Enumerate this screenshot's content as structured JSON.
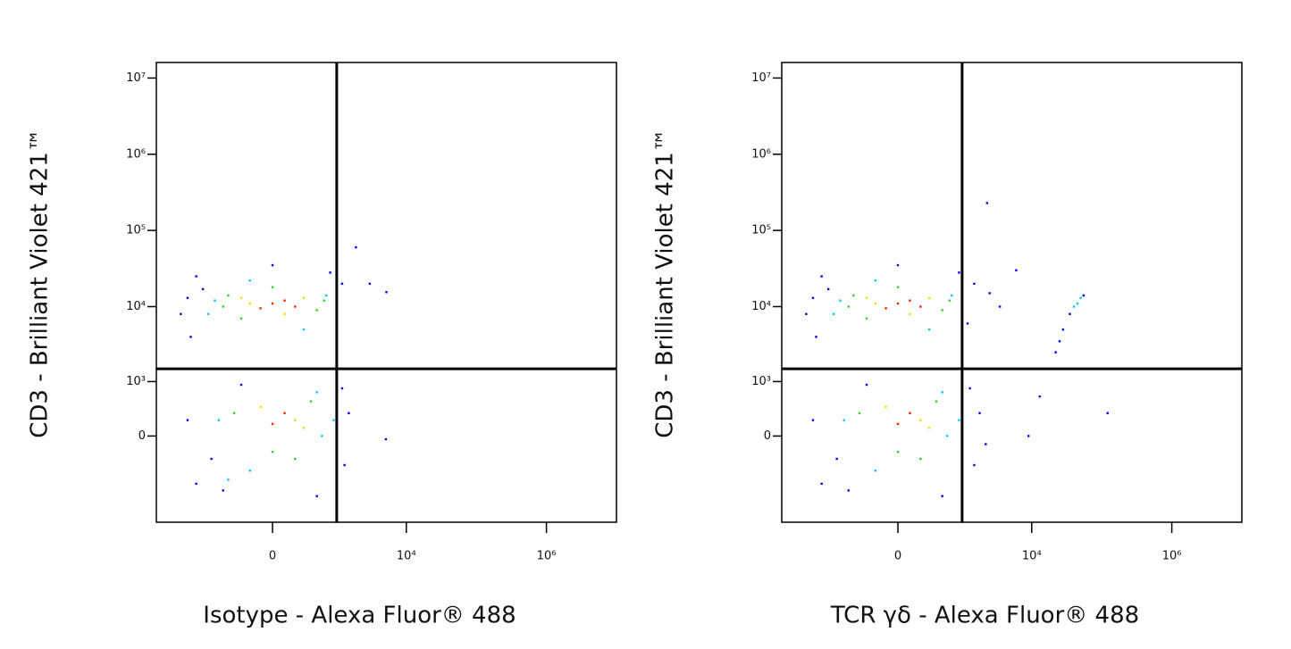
{
  "chart_data": [
    {
      "type": "scatter",
      "xlabel": "Isotype - Alexa Fluor® 488",
      "ylabel": "CD3 - Brilliant Violet 421™",
      "xscale": "biexponential",
      "xscale_width": 246,
      "yscale": "biexponential",
      "yscale_width": 401,
      "xlim": [
        -5600,
        10000000
      ],
      "ylim": [
        -2700,
        16000000
      ],
      "xticks": [
        {
          "value": 0,
          "label": "0"
        },
        {
          "value": 10000,
          "label": "10⁴"
        },
        {
          "value": 1000000,
          "label": "10⁶"
        }
      ],
      "yticks": [
        {
          "value": 0,
          "label": "0"
        },
        {
          "value": 1000,
          "label": "10³"
        },
        {
          "value": 10000,
          "label": "10⁴"
        },
        {
          "value": 100000,
          "label": "10⁵"
        },
        {
          "value": 1000000,
          "label": "10⁶"
        },
        {
          "value": 10000000,
          "label": "10⁷"
        }
      ],
      "gates": {
        "x": 1000,
        "y": 1500
      },
      "series": [
        {
          "color": "#0000ff",
          "x": [
            -2000,
            -1500,
            1200,
            1000,
            -1800,
            0,
            3000,
            1900,
            5200,
            -2000,
            -1500,
            1300,
            1200,
            -600,
            500,
            -300,
            5100,
            -1200,
            800,
            -900,
            1500,
            -2500
          ],
          "y": [
            13000,
            25000,
            20000,
            6000,
            4000,
            35000,
            20000,
            60000,
            15500,
            200,
            -800,
            -400,
            800,
            -1000,
            -1200,
            900,
            -40,
            17000,
            28000,
            -300,
            300,
            8000
          ]
        },
        {
          "color": "#00c8ff",
          "x": [
            -800,
            700,
            -200,
            300,
            -700,
            600,
            -200,
            500,
            -1000,
            900,
            -500
          ],
          "y": [
            12000,
            14000,
            22000,
            5000,
            200,
            0,
            -500,
            700,
            8000,
            200,
            -700
          ]
        },
        {
          "color": "#30d030",
          "x": [
            -500,
            500,
            -300,
            0,
            -400,
            400,
            0,
            200,
            -600,
            650
          ],
          "y": [
            14000,
            9000,
            7000,
            18000,
            300,
            500,
            -200,
            -300,
            10000,
            12000
          ]
        },
        {
          "color": "#f0e000",
          "x": [
            -200,
            300,
            100,
            200,
            -100,
            300,
            -300
          ],
          "y": [
            11000,
            13000,
            8000,
            200,
            400,
            100,
            13000
          ]
        },
        {
          "color": "#ff2000",
          "x": [
            0,
            100,
            -100,
            200,
            100,
            0
          ],
          "y": [
            11000,
            12000,
            9500,
            10000,
            300,
            150
          ]
        }
      ]
    },
    {
      "type": "scatter",
      "xlabel": "TCR γδ - Alexa Fluor® 488",
      "ylabel": "CD3 - Brilliant Violet 421™",
      "xscale": "biexponential",
      "xscale_width": 246,
      "yscale": "biexponential",
      "yscale_width": 401,
      "xlim": [
        -5600,
        10000000
      ],
      "ylim": [
        -2700,
        16000000
      ],
      "xticks": [
        {
          "value": 0,
          "label": "0"
        },
        {
          "value": 10000,
          "label": "10⁴"
        },
        {
          "value": 1000000,
          "label": "10⁶"
        }
      ],
      "yticks": [
        {
          "value": 0,
          "label": "0"
        },
        {
          "value": 1000,
          "label": "10³"
        },
        {
          "value": 10000,
          "label": "10⁴"
        },
        {
          "value": 100000,
          "label": "10⁵"
        },
        {
          "value": 1000000,
          "label": "10⁶"
        },
        {
          "value": 10000000,
          "label": "10⁷"
        }
      ],
      "gates": {
        "x": 1000,
        "y": 1500
      },
      "series": [
        {
          "color": "#0000ff",
          "x": [
            -2000,
            -1500,
            1500,
            1200,
            -1800,
            0,
            2500,
            2300,
            -2000,
            -1500,
            1500,
            1300,
            -600,
            500,
            -300,
            2200,
            -1200,
            900,
            -900,
            1800,
            -2500,
            9000,
            13000,
            18000,
            22000,
            28000,
            35000,
            55000,
            25000,
            121000,
            3500,
            6000
          ],
          "y": [
            13000,
            25000,
            20000,
            6000,
            4000,
            35000,
            15000,
            229000,
            200,
            -800,
            -400,
            800,
            -1000,
            -1200,
            900,
            -100,
            17000,
            28000,
            -300,
            300,
            8000,
            0,
            600,
            1500,
            2500,
            5000,
            8000,
            14000,
            3500,
            300,
            10000,
            30000
          ]
        },
        {
          "color": "#00c8ff",
          "x": [
            -800,
            700,
            -200,
            300,
            -700,
            600,
            -200,
            500,
            -1000,
            900,
            45000,
            50000,
            40000
          ],
          "y": [
            12000,
            14000,
            22000,
            5000,
            200,
            0,
            -500,
            700,
            8000,
            200,
            11000,
            13000,
            10000
          ]
        },
        {
          "color": "#30d030",
          "x": [
            -500,
            500,
            -300,
            0,
            -400,
            400,
            0,
            200,
            -600,
            650
          ],
          "y": [
            14000,
            9000,
            7000,
            18000,
            300,
            500,
            -200,
            -300,
            10000,
            12000
          ]
        },
        {
          "color": "#f0e000",
          "x": [
            -200,
            300,
            100,
            200,
            -100,
            300,
            -300
          ],
          "y": [
            11000,
            13000,
            8000,
            200,
            400,
            100,
            13000
          ]
        },
        {
          "color": "#ff2000",
          "x": [
            0,
            100,
            -100,
            200,
            100,
            0
          ],
          "y": [
            11000,
            12000,
            9500,
            10000,
            300,
            150
          ]
        }
      ]
    }
  ]
}
